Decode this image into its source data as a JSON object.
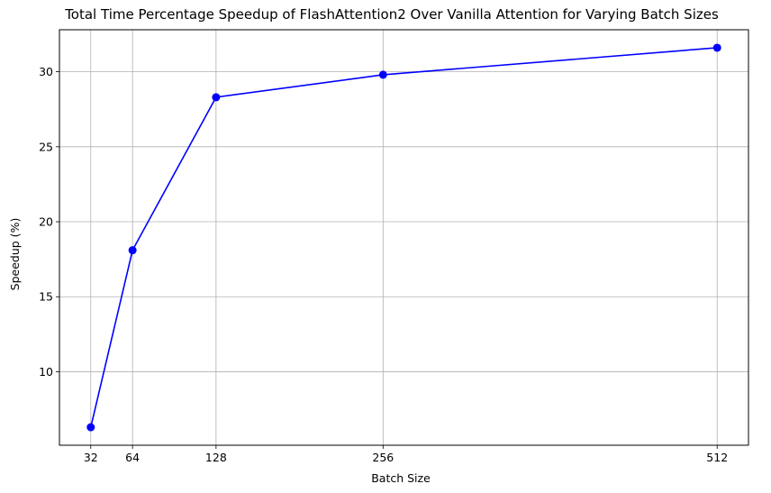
{
  "chart_data": {
    "type": "line",
    "title": "Total Time Percentage Speedup of FlashAttention2 Over Vanilla Attention for Varying Batch Sizes",
    "xlabel": "Batch Size",
    "ylabel": "Speedup (%)",
    "x": [
      32,
      64,
      128,
      256,
      512
    ],
    "xticks": [
      "32",
      "64",
      "128",
      "256",
      "512"
    ],
    "yticks": [
      10,
      15,
      20,
      25,
      30
    ],
    "xlim": [
      8,
      536
    ],
    "ylim": [
      5.1,
      32.8
    ],
    "grid": true,
    "series": [
      {
        "values": [
          6.3,
          18.1,
          28.3,
          29.8,
          31.6
        ],
        "color": "#0000ff",
        "marker": "circle"
      }
    ]
  }
}
